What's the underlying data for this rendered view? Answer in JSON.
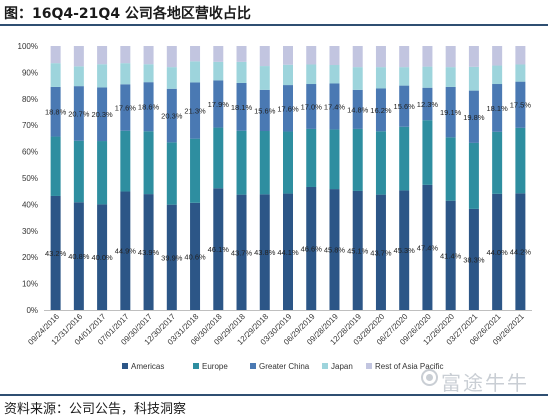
{
  "figure_title": "图：16Q4-21Q4 公司各地区营收占比",
  "source": "资料来源：公司公告，科技洞察",
  "watermark": "富途牛牛",
  "chart_data": {
    "type": "bar",
    "stacked": true,
    "ylim": [
      0,
      100
    ],
    "yticks": [
      "0%",
      "10%",
      "20%",
      "30%",
      "40%",
      "50%",
      "60%",
      "70%",
      "80%",
      "90%",
      "100%"
    ],
    "grid": false,
    "legend_position": "bottom",
    "categories": [
      "09/24/2016",
      "12/31/2016",
      "04/01/2017",
      "07/01/2017",
      "09/30/2017",
      "12/30/2017",
      "03/31/2018",
      "06/30/2018",
      "09/29/2018",
      "12/29/2018",
      "03/30/2019",
      "06/29/2019",
      "09/28/2019",
      "12/28/2019",
      "03/28/2020",
      "06/27/2020",
      "09/26/2020",
      "12/26/2020",
      "03/27/2021",
      "06/26/2021",
      "09/26/2021"
    ],
    "series": [
      {
        "name": "Americas",
        "color": "#2c5687",
        "values": [
          43.2,
          40.8,
          40.0,
          44.9,
          43.9,
          39.9,
          40.6,
          46.1,
          43.7,
          43.8,
          44.1,
          46.6,
          45.8,
          45.1,
          43.7,
          45.3,
          47.4,
          41.4,
          38.3,
          44.0,
          44.2
        ],
        "labels": [
          "43.2%",
          "40.8%",
          "40.0%",
          "44.9%",
          "43.9%",
          "39.9%",
          "40.6%",
          "46.1%",
          "43.7%",
          "43.8%",
          "44.1%",
          "46.6%",
          "45.8%",
          "45.1%",
          "43.7%",
          "45.3%",
          "47.4%",
          "41.4%",
          "38.3%",
          "44.0%",
          "44.2%"
        ]
      },
      {
        "name": "Europe",
        "color": "#2e8ea0",
        "values": [
          22.5,
          23.3,
          24.0,
          23.0,
          23.8,
          23.6,
          24.3,
          23.0,
          24.2,
          24.0,
          23.5,
          22.0,
          22.6,
          23.5,
          24.0,
          24.1,
          24.5,
          24.0,
          25.0,
          23.5,
          24.8
        ]
      },
      {
        "name": "Greater China",
        "color": "#4a79b3",
        "values": [
          18.8,
          20.7,
          20.3,
          17.6,
          18.6,
          20.3,
          21.3,
          17.9,
          18.1,
          15.6,
          17.6,
          17.0,
          17.4,
          14.8,
          16.2,
          15.6,
          12.3,
          19.1,
          19.8,
          18.1,
          17.5
        ],
        "labels": [
          "18.8%",
          "20.7%",
          "20.3%",
          "17.6%",
          "18.6%",
          "20.3%",
          "21.3%",
          "17.9%",
          "18.1%",
          "15.6%",
          "17.6%",
          "17.0%",
          "17.4%",
          "14.8%",
          "16.2%",
          "15.6%",
          "12.3%",
          "19.1%",
          "19.8%",
          "18.1%",
          "17.5%"
        ]
      },
      {
        "name": "Japan",
        "color": "#9dd4dc",
        "values": [
          9.0,
          7.5,
          8.8,
          8.0,
          6.8,
          8.2,
          8.0,
          7.0,
          8.0,
          9.0,
          7.7,
          7.4,
          7.0,
          8.6,
          8.1,
          7.0,
          8.0,
          7.5,
          9.0,
          7.0,
          6.5
        ]
      },
      {
        "name": "Rest of Asia Pacific",
        "color": "#c2c5e0",
        "values": [
          6.5,
          7.7,
          6.9,
          6.5,
          6.9,
          8.0,
          5.8,
          6.0,
          6.0,
          7.6,
          7.1,
          7.0,
          7.2,
          8.0,
          8.0,
          8.0,
          7.8,
          8.0,
          7.9,
          7.4,
          7.0
        ]
      }
    ]
  }
}
